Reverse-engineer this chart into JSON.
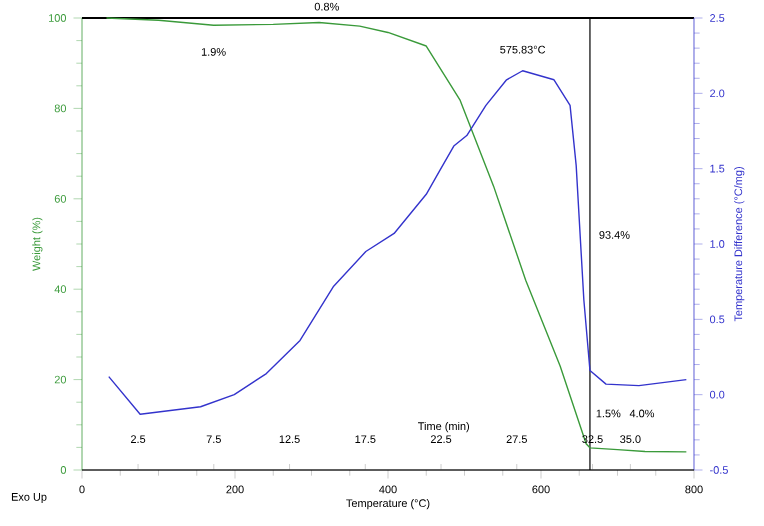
{
  "chart_data": {
    "type": "line",
    "xlabel": "Temperature (°C)",
    "ylabel": "Weight (%)",
    "y2label": "Temperature Difference (°C/mg)",
    "x2label": "Time (min)",
    "x": [
      32,
      100,
      172,
      250,
      310,
      363,
      400,
      450,
      494,
      538,
      580,
      625,
      659,
      664,
      700,
      736,
      790
    ],
    "series": [
      {
        "color": "#3a9a3a",
        "values": [
          100,
          99.5,
          98.4,
          98.6,
          99,
          98.2,
          96.8,
          93.8,
          81.9,
          62.8,
          42,
          23,
          5.8,
          4.9,
          4.5,
          4.1,
          4.0
        ]
      },
      {
        "color": "#3333cc",
        "axis": "y2",
        "x": [
          35,
          76,
          155,
          199,
          241,
          285,
          329,
          371,
          408,
          450,
          468,
          486,
          503,
          528,
          555,
          576,
          617,
          638,
          646,
          656,
          664,
          685,
          728,
          790
        ],
        "values": [
          0.12,
          -0.13,
          -0.08,
          0.0,
          0.14,
          0.36,
          0.72,
          0.95,
          1.07,
          1.33,
          1.49,
          1.65,
          1.72,
          1.92,
          2.09,
          2.15,
          2.09,
          1.92,
          1.52,
          0.63,
          0.16,
          0.07,
          0.06,
          0.1
        ]
      }
    ],
    "xlim": [
      0,
      800
    ],
    "xticks": [
      0,
      200,
      400,
      600,
      800
    ],
    "ylim": [
      0,
      100
    ],
    "yticks": [
      0,
      20,
      40,
      60,
      80,
      100
    ],
    "y2lim": [
      -0.5,
      2.5
    ],
    "y2ticks": [
      -0.5,
      {
        "value": 0,
        "label": "0.0"
      },
      0.5,
      {
        "value": 1,
        "label": "1.0"
      },
      1.5,
      {
        "value": 2,
        "label": "2.0"
      },
      2.5
    ],
    "x2lim": [
      -1.2,
      39.2
    ],
    "x2ticks": [
      2.5,
      7.5,
      12.5,
      17.5,
      22.5,
      27.5,
      32.5,
      {
        "value": 35,
        "label": "35.0"
      }
    ],
    "annotations": [
      "1.9%",
      "0.8%",
      "575.83°C",
      "93.4%",
      "1.5%",
      "4.0%",
      "Exo Up"
    ],
    "ref_lines": [
      {
        "axis": "y",
        "value": 100,
        "color": "#000000"
      },
      {
        "axis": "x",
        "value": 664,
        "color": "#000000"
      }
    ],
    "marker": "none",
    "line_style": "solid"
  }
}
